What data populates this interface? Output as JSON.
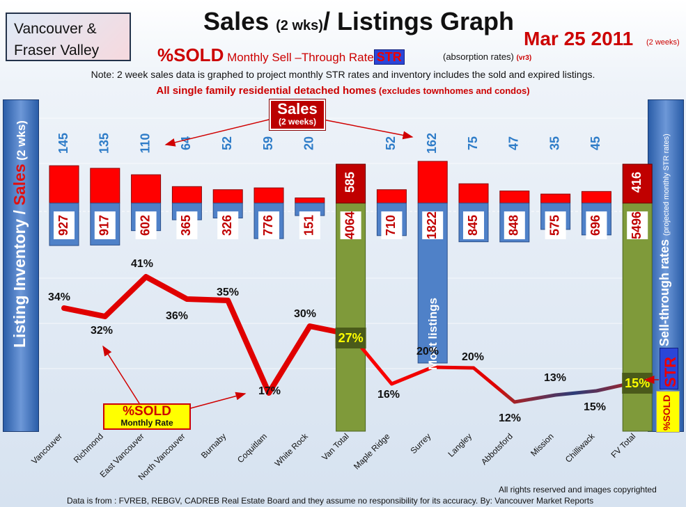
{
  "header": {
    "region_line1": "Vancouver &",
    "region_line2": "Fraser Valley",
    "title_main": "Sales ",
    "title_small": "(2 wks)",
    "title_rest": "/ Listings Graph",
    "date": "Mar 25 2011",
    "date_note": "(2 weeks)",
    "subtitle_pct": "%SOLD",
    "subtitle_rate": " Monthly Sell –Through Rate",
    "subtitle_str": "STR",
    "absorption": "(absorption rates)",
    "version": "(vr3)",
    "note": "Note: 2 week sales data is graphed to project monthly STR rates and inventory includes the sold and expired listings.",
    "note2_main": "All single family residential detached homes",
    "note2_sub": " (excludes townhomes and condos)"
  },
  "panels": {
    "left_title_a": "Listing Inventory / ",
    "left_title_b": "Sales",
    "left_title_c": " (2  wks)",
    "right_title_a": "Sell-through rates ",
    "right_title_b": "(projected monthly STR rates)",
    "str_badge": "STR",
    "sold_badge": "%SOLD"
  },
  "callouts": {
    "sales": "Sales",
    "sales_sub": "(2 weeks)",
    "sold": "%SOLD",
    "sold_sub": "Monthly Rate",
    "most_listings": "Most listings"
  },
  "footer": {
    "rights": "All rights reserved and  images copyrighted",
    "source": "Data is from : FVREB, REBGV, CADREB Real Estate Board and they assume no responsibility for its accuracy. By: Vancouver Market Reports"
  },
  "chart_data": {
    "type": "bar",
    "categories": [
      "Vancouver",
      "Richmond",
      "East Vancouver",
      "North Vancouver",
      "Burnaby",
      "Coquitlam",
      "White Rock",
      "Van Total",
      "Maple Ridge",
      "Surrey",
      "Langley",
      "Abbotsford",
      "Mission",
      "Chilliwack",
      "FV Total"
    ],
    "series": [
      {
        "name": "Sales",
        "values": [
          145,
          135,
          110,
          64,
          52,
          59,
          20,
          585,
          52,
          162,
          75,
          47,
          35,
          45,
          416
        ]
      },
      {
        "name": "Listing Inventory",
        "values": [
          927,
          917,
          602,
          365,
          326,
          776,
          151,
          4064,
          710,
          1822,
          845,
          848,
          575,
          696,
          5496
        ]
      },
      {
        "name": "%SOLD",
        "values": [
          34,
          32,
          41,
          36,
          35,
          17,
          30,
          27,
          16,
          20,
          20,
          12,
          13,
          15,
          15
        ]
      }
    ],
    "percent_labels": [
      "34%",
      "32%",
      "41%",
      "36%",
      "35%",
      "17%",
      "30%",
      "27%",
      "16%",
      "20%",
      "20%",
      "12%",
      "13%",
      "15%",
      "15%"
    ],
    "totals": [
      "Van Total",
      "FV Total"
    ],
    "colors": {
      "sales": "#ff0000",
      "sales_total": "#c00000",
      "inventory": "#4f81c8",
      "total_bar": "#7f9a3a",
      "line_vancouver": "#e00000",
      "line_fraser": "#2b3c78",
      "pct_highlight_bg": "#4a5a1a",
      "pct_highlight_text": "#ffff00"
    }
  }
}
